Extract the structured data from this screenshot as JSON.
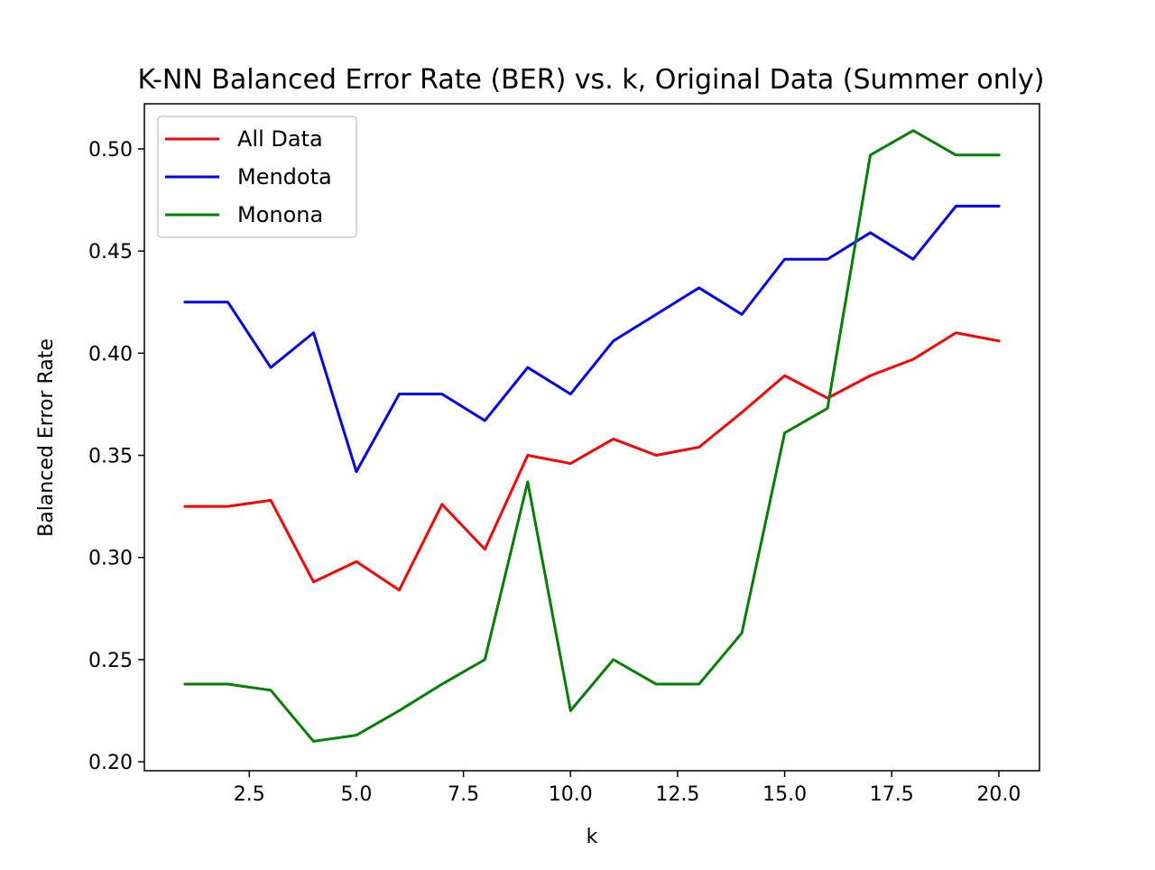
{
  "chart_data": {
    "type": "line",
    "title": "K-NN Balanced Error Rate (BER) vs. k, Original Data (Summer only)",
    "xlabel": "k",
    "ylabel": "Balanced Error Rate",
    "xlim": [
      0.05,
      20.95
    ],
    "ylim": [
      0.1956,
      0.5221
    ],
    "x_ticks": [
      2.5,
      5.0,
      7.5,
      10.0,
      12.5,
      15.0,
      17.5,
      20.0
    ],
    "x_tick_labels": [
      "2.5",
      "5.0",
      "7.5",
      "10.0",
      "12.5",
      "15.0",
      "17.5",
      "20.0"
    ],
    "y_ticks": [
      0.2,
      0.25,
      0.3,
      0.35,
      0.4,
      0.45,
      0.5
    ],
    "y_tick_labels": [
      "0.20",
      "0.25",
      "0.30",
      "0.35",
      "0.40",
      "0.45",
      "0.50"
    ],
    "grid": false,
    "legend_position": "top-left",
    "x": [
      1,
      2,
      3,
      4,
      5,
      6,
      7,
      8,
      9,
      10,
      11,
      12,
      13,
      14,
      15,
      16,
      17,
      18,
      19,
      20
    ],
    "series": [
      {
        "name": "All Data",
        "color": "#ff0000",
        "values": [
          0.325,
          0.325,
          0.328,
          0.288,
          0.298,
          0.284,
          0.326,
          0.304,
          0.35,
          0.346,
          0.358,
          0.35,
          0.354,
          0.371,
          0.389,
          0.378,
          0.389,
          0.397,
          0.41,
          0.406
        ]
      },
      {
        "name": "Mendota",
        "color": "#0000ff",
        "values": [
          0.425,
          0.425,
          0.393,
          0.41,
          0.342,
          0.38,
          0.38,
          0.367,
          0.393,
          0.38,
          0.406,
          0.419,
          0.432,
          0.419,
          0.446,
          0.446,
          0.459,
          0.446,
          0.472,
          0.472
        ]
      },
      {
        "name": "Monona",
        "color": "#008000",
        "values": [
          0.238,
          0.238,
          0.235,
          0.21,
          0.213,
          0.225,
          0.238,
          0.25,
          0.337,
          0.225,
          0.25,
          0.238,
          0.238,
          0.263,
          0.361,
          0.373,
          0.497,
          0.509,
          0.497,
          0.497
        ]
      }
    ]
  }
}
